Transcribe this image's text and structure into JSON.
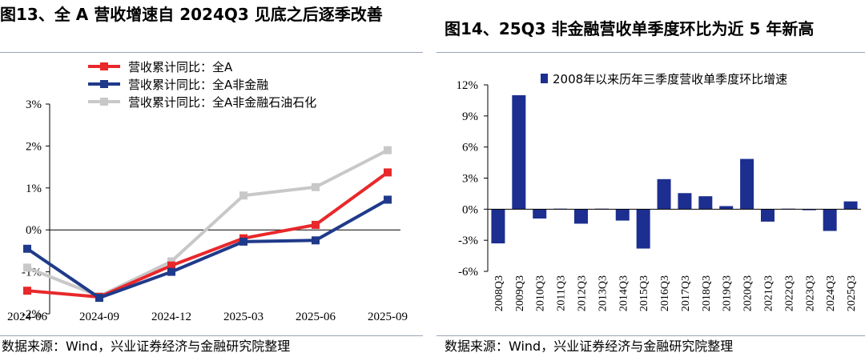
{
  "left_panel": {
    "title": "图13、全 A 营收增速自 2024Q3 见底之后逐季改善",
    "source": "数据来源：Wind，兴业证券经济与金融研究院整理"
  },
  "right_panel": {
    "title": "图14、25Q3 非金融营收单季度环比为近 5 年新高",
    "source": "数据来源：Wind，兴业证券经济与金融研究院整理"
  },
  "chart_data": [
    {
      "type": "line",
      "x": [
        "2024-06",
        "2024-09",
        "2024-12",
        "2025-03",
        "2025-06",
        "2025-09"
      ],
      "ylim": [
        -2,
        3
      ],
      "yticks": [
        -2,
        -1,
        0,
        1,
        2,
        3
      ],
      "ytick_labels": [
        "-2%",
        "-1%",
        "0%",
        "1%",
        "2%",
        "3%"
      ],
      "legend_position": "top-left",
      "grid": false,
      "series": [
        {
          "name": "营收累计同比：全A",
          "color": "#e8282b",
          "values": [
            -1.45,
            -1.6,
            -0.85,
            -0.2,
            0.12,
            1.37
          ]
        },
        {
          "name": "营收累计同比：全A非金融",
          "color": "#1f3a8a",
          "values": [
            -0.45,
            -1.62,
            -1.0,
            -0.28,
            -0.25,
            0.72
          ]
        },
        {
          "name": "营收累计同比：全A非金融石油石化",
          "color": "#c8c8c8",
          "values": [
            -0.9,
            -1.58,
            -0.75,
            0.82,
            1.02,
            1.9
          ]
        }
      ]
    },
    {
      "type": "bar",
      "categories": [
        "2008Q3",
        "2009Q3",
        "2010Q3",
        "2011Q3",
        "2012Q3",
        "2013Q3",
        "2014Q3",
        "2015Q3",
        "2016Q3",
        "2017Q3",
        "2018Q3",
        "2019Q3",
        "2020Q3",
        "2021Q3",
        "2022Q3",
        "2023Q3",
        "2024Q3",
        "2025Q3"
      ],
      "ylim": [
        -6,
        12
      ],
      "yticks": [
        -6,
        -3,
        0,
        3,
        6,
        9,
        12
      ],
      "ytick_labels": [
        "-6%",
        "-3%",
        "0%",
        "3%",
        "6%",
        "9%",
        "12%"
      ],
      "legend_position": "top",
      "grid": false,
      "series": [
        {
          "name": "2008年以来历年三季度营收单季度环比增速",
          "color": "#1c2e8f",
          "values": [
            -3.3,
            11.0,
            -0.9,
            0.05,
            -1.4,
            0.05,
            -1.1,
            -3.8,
            2.9,
            1.55,
            1.25,
            0.3,
            4.85,
            -1.2,
            0.05,
            -0.1,
            -2.1,
            0.75
          ]
        }
      ]
    }
  ]
}
